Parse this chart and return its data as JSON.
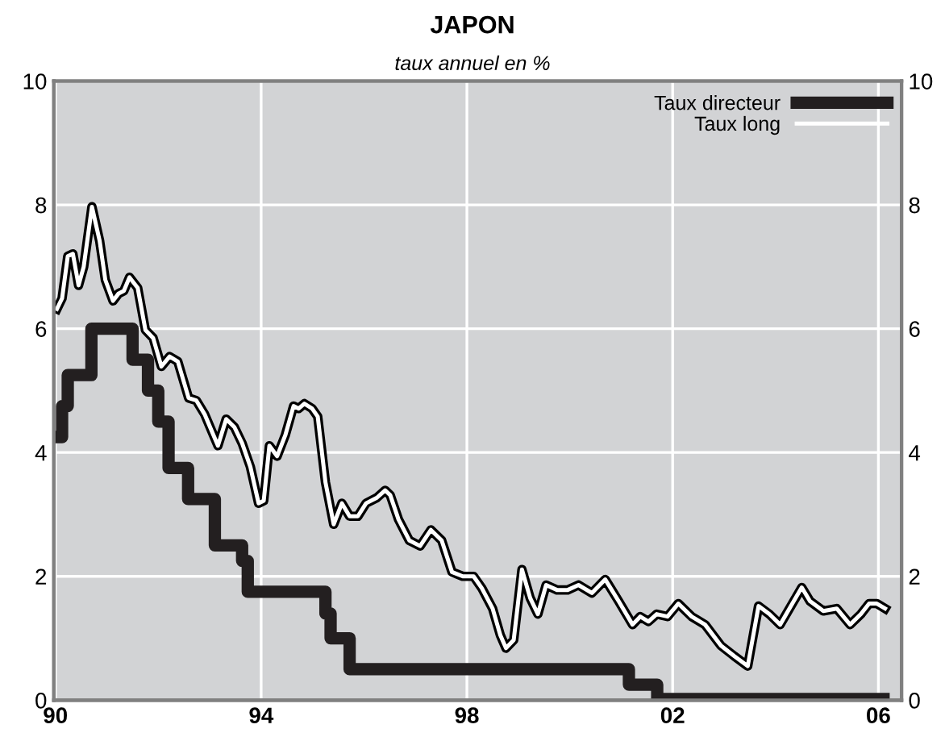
{
  "chart_data": {
    "type": "line",
    "title": "JAPON",
    "subtitle": "taux annuel en %",
    "xlim": [
      1989.97,
      2006.45
    ],
    "xticks": [
      {
        "value": 1990,
        "label": "90"
      },
      {
        "value": 1994,
        "label": "94"
      },
      {
        "value": 1998,
        "label": "98"
      },
      {
        "value": 2002,
        "label": "02"
      },
      {
        "value": 2006,
        "label": "06"
      }
    ],
    "ylim": [
      0,
      10
    ],
    "yticks": [
      0,
      2,
      4,
      6,
      8,
      10
    ],
    "y2lim": [
      0,
      10
    ],
    "y2ticks": [
      0,
      2,
      4,
      6,
      8,
      10
    ],
    "grid": true,
    "legend": "top right",
    "series": [
      {
        "name": "Taux directeur",
        "type": "step",
        "color": "#231f20",
        "x": [
          1990.0,
          1990.13,
          1990.24,
          1990.7,
          1991.5,
          1991.8,
          1992.0,
          1992.2,
          1992.58,
          1993.1,
          1993.63,
          1993.74,
          1995.25,
          1995.35,
          1995.72,
          2001.15,
          2001.7,
          2006.1
        ],
        "values": [
          4.25,
          4.75,
          5.25,
          6.0,
          5.5,
          5.0,
          4.5,
          3.75,
          3.25,
          2.5,
          2.25,
          1.75,
          1.4,
          1.0,
          0.5,
          0.25,
          0.02,
          0.02
        ]
      },
      {
        "name": "Taux long",
        "color": "#ffffff",
        "x": [
          1990.03,
          1990.13,
          1990.24,
          1990.34,
          1990.45,
          1990.55,
          1990.71,
          1990.86,
          1990.97,
          1991.12,
          1991.23,
          1991.33,
          1991.44,
          1991.6,
          1991.75,
          1991.9,
          1992.06,
          1992.22,
          1992.38,
          1992.59,
          1992.74,
          1992.9,
          1993.16,
          1993.32,
          1993.48,
          1993.63,
          1993.79,
          1993.95,
          1994.05,
          1994.16,
          1994.31,
          1994.47,
          1994.63,
          1994.73,
          1994.84,
          1994.99,
          1995.1,
          1995.25,
          1995.41,
          1995.57,
          1995.72,
          1995.88,
          1996.04,
          1996.25,
          1996.41,
          1996.51,
          1996.67,
          1996.88,
          1997.09,
          1997.3,
          1997.51,
          1997.71,
          1997.92,
          1998.13,
          1998.29,
          1998.5,
          1998.65,
          1998.76,
          1998.91,
          1999.07,
          1999.23,
          1999.38,
          1999.54,
          1999.75,
          1999.96,
          2000.17,
          2000.43,
          2000.69,
          2000.95,
          2001.22,
          2001.37,
          2001.53,
          2001.69,
          2001.9,
          2002.11,
          2002.37,
          2002.63,
          2002.94,
          2003.2,
          2003.46,
          2003.67,
          2003.88,
          2004.09,
          2004.3,
          2004.51,
          2004.67,
          2004.93,
          2005.19,
          2005.45,
          2005.66,
          2005.82,
          2005.97,
          2006.13
        ],
        "values": [
          6.32,
          6.49,
          7.17,
          7.21,
          6.7,
          7.0,
          7.97,
          7.42,
          6.79,
          6.45,
          6.57,
          6.61,
          6.83,
          6.66,
          5.98,
          5.85,
          5.39,
          5.55,
          5.47,
          4.88,
          4.84,
          4.62,
          4.11,
          4.54,
          4.41,
          4.15,
          3.77,
          3.18,
          3.22,
          4.11,
          3.94,
          4.28,
          4.75,
          4.71,
          4.79,
          4.71,
          4.58,
          3.52,
          2.84,
          3.18,
          2.97,
          2.97,
          3.18,
          3.27,
          3.39,
          3.31,
          2.92,
          2.58,
          2.49,
          2.75,
          2.58,
          2.07,
          2.0,
          2.0,
          1.81,
          1.48,
          1.05,
          0.84,
          0.97,
          2.11,
          1.65,
          1.39,
          1.86,
          1.78,
          1.78,
          1.86,
          1.73,
          1.95,
          1.6,
          1.22,
          1.35,
          1.27,
          1.39,
          1.35,
          1.56,
          1.35,
          1.22,
          0.88,
          0.71,
          0.55,
          1.52,
          1.39,
          1.22,
          1.52,
          1.82,
          1.6,
          1.44,
          1.48,
          1.22,
          1.39,
          1.56,
          1.56,
          1.48
        ]
      }
    ]
  }
}
